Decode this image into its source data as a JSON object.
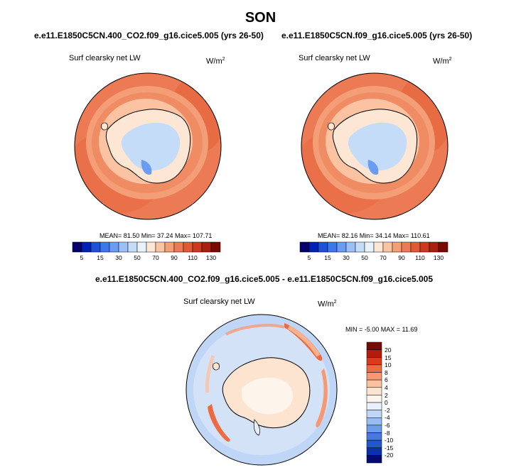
{
  "title": "SON",
  "panels": [
    {
      "case": "e.e11.E1850C5CN.400_CO2.f09_g16.cice5.005 (yrs 26-50)",
      "variable": "Surf clearsky net LW",
      "units": "W/m",
      "units_sup": "2",
      "stats": "MEAN=  81.50  Min=  37.24  Max= 107.71",
      "mean": 81.5,
      "min": 37.24,
      "max": 107.71
    },
    {
      "case": "e.e11.E1850C5CN.f09_g16.cice5.005 (yrs 26-50)",
      "variable": "Surf clearsky net LW",
      "units": "W/m",
      "units_sup": "2",
      "stats": "MEAN=  82.16  Min=  34.14  Max= 110.61",
      "mean": 82.16,
      "min": 34.14,
      "max": 110.61
    }
  ],
  "diff_panel": {
    "case": "e.e11.E1850C5CN.400_CO2.f09_g16.cice5.005 - e.e11.E1850C5CN.f09_g16.cice5.005",
    "variable": "Surf clearsky net LW",
    "units": "W/m",
    "units_sup": "2",
    "stats": "MIN =  -5.00 MAX =  11.69",
    "min": -5.0,
    "max": 11.69
  },
  "colorbar_abs": {
    "colors": [
      "#06006e",
      "#0020b8",
      "#1e50d8",
      "#3c78ec",
      "#6a9cf4",
      "#9cbff6",
      "#c4dcf8",
      "#e8f2fb",
      "#fde6d4",
      "#fbc3a2",
      "#f49e78",
      "#ec7a54",
      "#e05a36",
      "#cc3a1e",
      "#a8200e",
      "#780a04"
    ],
    "labels": [
      "5",
      "15",
      "30",
      "50",
      "70",
      "90",
      "110",
      "130"
    ]
  },
  "colorbar_diff": {
    "colors": [
      "#780a04",
      "#b41c0a",
      "#d83c1c",
      "#ee6a40",
      "#f89872",
      "#fbc2a0",
      "#fde4d0",
      "#fdf4ec",
      "#e8f0fb",
      "#c0d6f6",
      "#98bcf2",
      "#6e9cec",
      "#4678e0",
      "#2456cc",
      "#0a30aa",
      "#040c70"
    ],
    "labels": [
      "20",
      "15",
      "10",
      "8",
      "6",
      "4",
      "2",
      "0",
      "-2",
      "-4",
      "-6",
      "-8",
      "-10",
      "-15",
      "-20"
    ]
  },
  "colors": {
    "ocean_warm": "#ec7a54",
    "ocean_light": "#f49e78",
    "ice_edge": "#fbc3a2",
    "ice_pale": "#fde6d4",
    "continent": "#c4dcf8",
    "diff_bg": "#c0d6f6",
    "diff_pale": "#fde4d0"
  }
}
